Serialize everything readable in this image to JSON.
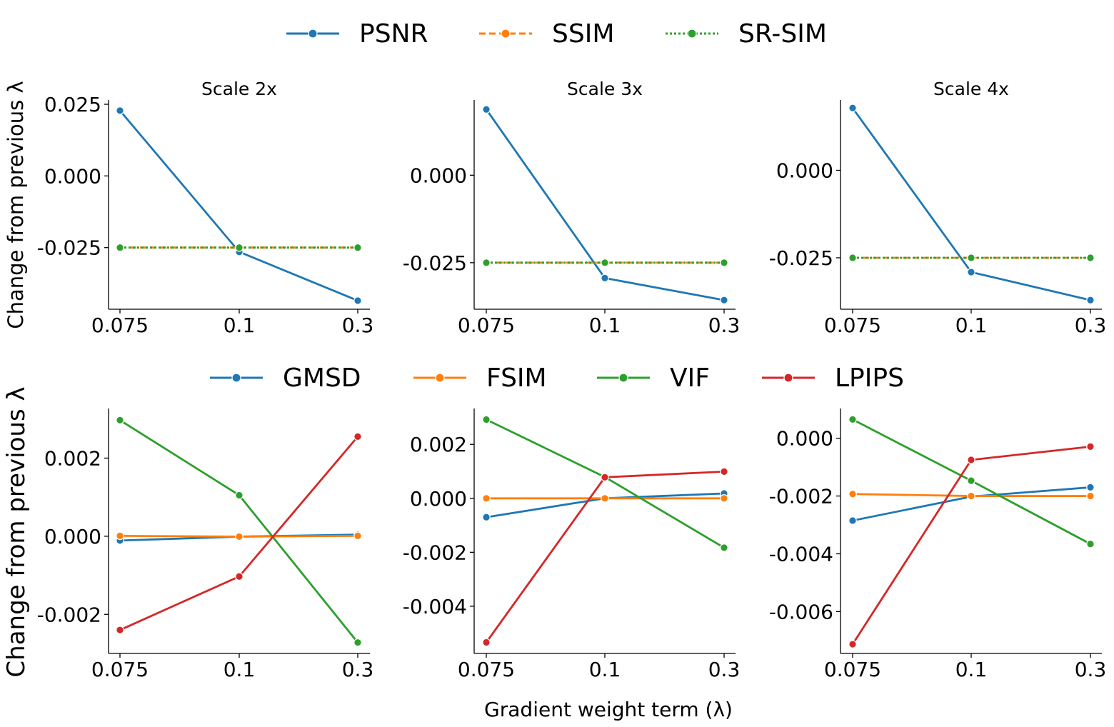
{
  "chart_data": {
    "type": "line",
    "x": [
      "0.075",
      "0.1",
      "0.3"
    ],
    "xlabel": "Gradient weight term (λ)",
    "top_ylabel": "Change from previous λ",
    "bottom_ylabel": "Change from previous λ",
    "top_legend": [
      {
        "name": "PSNR",
        "color": "#1f77b4",
        "dash": "solid"
      },
      {
        "name": "SSIM",
        "color": "#ff7f0e",
        "dash": "dashed"
      },
      {
        "name": "SR-SIM",
        "color": "#2ca02c",
        "dash": "dotted"
      }
    ],
    "bottom_legend": [
      {
        "name": "GMSD",
        "color": "#1f77b4"
      },
      {
        "name": "FSIM",
        "color": "#ff7f0e"
      },
      {
        "name": "VIF",
        "color": "#2ca02c"
      },
      {
        "name": "LPIPS",
        "color": "#d62728"
      }
    ],
    "top_panels": [
      {
        "title": "Scale 2x",
        "ylim": [
          -0.0465,
          0.0265
        ],
        "yticks": [
          0.025,
          0.0,
          -0.025
        ],
        "ytick_labels": [
          "0.025",
          "0.000",
          "-0.025"
        ],
        "series": [
          {
            "name": "PSNR",
            "color": "#1f77b4",
            "dash": "solid",
            "values": [
              0.0228,
              -0.0265,
              -0.0435
            ]
          },
          {
            "name": "SSIM",
            "color": "#ff7f0e",
            "dash": "dashed",
            "values": [
              -0.025,
              -0.025,
              -0.025
            ]
          },
          {
            "name": "SR-SIM",
            "color": "#2ca02c",
            "dash": "dotted",
            "values": [
              -0.025,
              -0.025,
              -0.025
            ]
          }
        ]
      },
      {
        "title": "Scale 3x",
        "ylim": [
          -0.0383,
          0.0215
        ],
        "yticks": [
          0.0,
          -0.025
        ],
        "ytick_labels": [
          "0.000",
          "-0.025"
        ],
        "series": [
          {
            "name": "PSNR",
            "color": "#1f77b4",
            "dash": "solid",
            "values": [
              0.0188,
              -0.0294,
              -0.0357
            ]
          },
          {
            "name": "SSIM",
            "color": "#ff7f0e",
            "dash": "dashed",
            "values": [
              -0.025,
              -0.025,
              -0.025
            ]
          },
          {
            "name": "SR-SIM",
            "color": "#2ca02c",
            "dash": "dotted",
            "values": [
              -0.025,
              -0.025,
              -0.025
            ]
          }
        ]
      },
      {
        "title": "Scale 4x",
        "ylim": [
          -0.0397,
          0.0201
        ],
        "yticks": [
          0.0,
          -0.025
        ],
        "ytick_labels": [
          "0.000",
          "-0.025"
        ],
        "series": [
          {
            "name": "PSNR",
            "color": "#1f77b4",
            "dash": "solid",
            "values": [
              0.0178,
              -0.0291,
              -0.0371
            ]
          },
          {
            "name": "SSIM",
            "color": "#ff7f0e",
            "dash": "dashed",
            "values": [
              -0.025,
              -0.025,
              -0.025
            ]
          },
          {
            "name": "SR-SIM",
            "color": "#2ca02c",
            "dash": "dotted",
            "values": [
              -0.025,
              -0.025,
              -0.025
            ]
          }
        ]
      }
    ],
    "bottom_panels": [
      {
        "title": "",
        "ylim": [
          -0.003,
          0.00327
        ],
        "yticks": [
          0.002,
          0.0,
          -0.002
        ],
        "ytick_labels": [
          "0.002",
          "0.000",
          "-0.002"
        ],
        "series": [
          {
            "name": "GMSD",
            "color": "#1f77b4",
            "values": [
              -0.00011,
              -1e-05,
              4e-05
            ]
          },
          {
            "name": "FSIM",
            "color": "#ff7f0e",
            "values": [
              1e-05,
              -1e-05,
              1e-05
            ]
          },
          {
            "name": "VIF",
            "color": "#2ca02c",
            "values": [
              0.00297,
              0.00105,
              -0.00272
            ]
          },
          {
            "name": "LPIPS",
            "color": "#d62728",
            "values": [
              -0.0024,
              -0.00103,
              0.00255
            ]
          }
        ]
      },
      {
        "title": "",
        "ylim": [
          -0.00575,
          0.00333
        ],
        "yticks": [
          0.002,
          0.0,
          -0.002,
          -0.004
        ],
        "ytick_labels": [
          "0.002",
          "0.000",
          "-0.002",
          "-0.004"
        ],
        "series": [
          {
            "name": "GMSD",
            "color": "#1f77b4",
            "values": [
              -0.0007,
              0.0,
              0.00018
            ]
          },
          {
            "name": "FSIM",
            "color": "#ff7f0e",
            "values": [
              0.0,
              0.0,
              0.0
            ]
          },
          {
            "name": "VIF",
            "color": "#2ca02c",
            "values": [
              0.00292,
              0.00079,
              -0.00183
            ]
          },
          {
            "name": "LPIPS",
            "color": "#d62728",
            "values": [
              -0.00534,
              0.00078,
              0.00099
            ]
          }
        ]
      },
      {
        "title": "",
        "ylim": [
          -0.00745,
          0.00103
        ],
        "yticks": [
          0.0,
          -0.002,
          -0.004,
          -0.006
        ],
        "ytick_labels": [
          "0.000",
          "-0.002",
          "-0.004",
          "-0.006"
        ],
        "series": [
          {
            "name": "GMSD",
            "color": "#1f77b4",
            "values": [
              -0.00285,
              -0.00202,
              -0.0017
            ]
          },
          {
            "name": "FSIM",
            "color": "#ff7f0e",
            "values": [
              -0.00193,
              -0.002,
              -0.002
            ]
          },
          {
            "name": "VIF",
            "color": "#2ca02c",
            "values": [
              0.00065,
              -0.00147,
              -0.00366
            ]
          },
          {
            "name": "LPIPS",
            "color": "#d62728",
            "values": [
              -0.00713,
              -0.00075,
              -0.00029
            ]
          }
        ]
      }
    ]
  }
}
